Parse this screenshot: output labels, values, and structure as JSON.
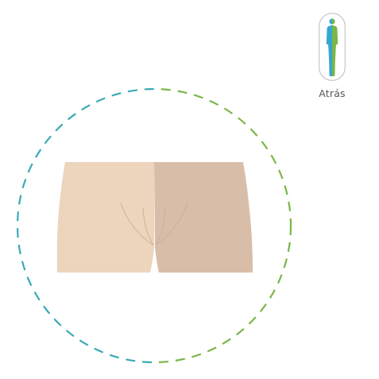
{
  "back_button": {
    "label": "Atrás",
    "icon": "body-front-back-icon"
  },
  "colors": {
    "circle_left": "#3aaab5",
    "circle_right": "#7ab648",
    "skin_light": "#ecd4bd",
    "skin_dark": "#d8bea9",
    "icon_blue": "#35a6cf",
    "icon_green": "#7ab648",
    "pill_border": "#bbbbbb"
  }
}
